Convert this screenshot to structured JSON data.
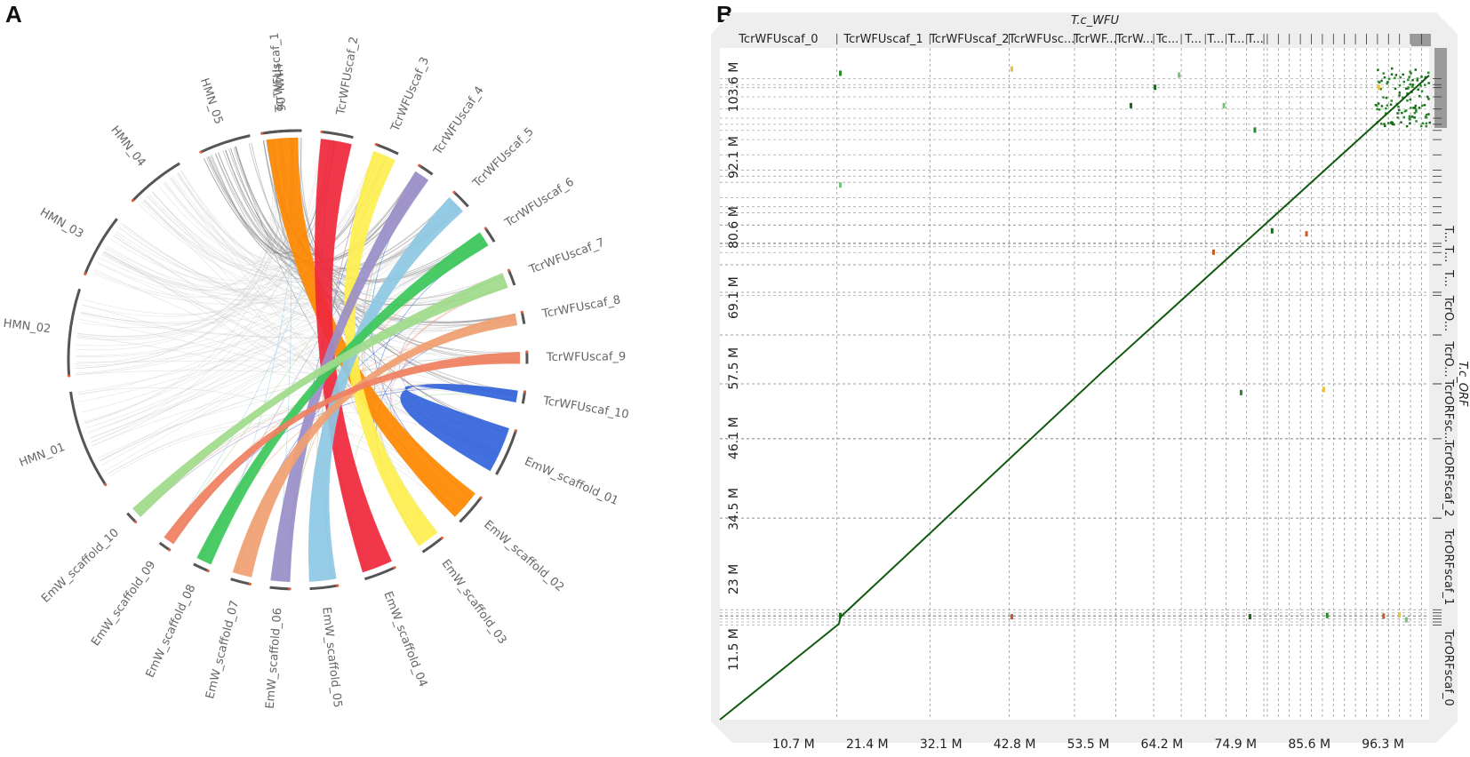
{
  "panels": {
    "a": {
      "letter": "A"
    },
    "b": {
      "letter": "B"
    }
  },
  "chart_data": [
    {
      "type": "chord",
      "panel": "A",
      "segments": [
        {
          "name": "TcrWFUscaf_1",
          "color": "#ff8800"
        },
        {
          "name": "TcrWFUscaf_2",
          "color": "#f0283c"
        },
        {
          "name": "TcrWFUscaf_3",
          "color": "#fff050"
        },
        {
          "name": "TcrWFUscaf_4",
          "color": "#9b8fc8"
        },
        {
          "name": "TcrWFUscaf_5",
          "color": "#8ec8e4"
        },
        {
          "name": "TcrWFUscaf_6",
          "color": "#3cc85a"
        },
        {
          "name": "TcrWFUscaf_7",
          "color": "#ffe600"
        },
        {
          "name": "TcrWFUscaf_8",
          "color": "#f0a070"
        },
        {
          "name": "TcrWFUscaf_9",
          "color": "#a0d0e8"
        },
        {
          "name": "TcrWFUscaf_10",
          "color": "#c87840"
        },
        {
          "name": "EmW_scaffold_01",
          "color": "#6e6e6e"
        },
        {
          "name": "EmW_scaffold_02",
          "color": "#6e6e6e"
        },
        {
          "name": "EmW_scaffold_03",
          "color": "#6e6e6e"
        },
        {
          "name": "EmW_scaffold_04",
          "color": "#6e6e6e"
        },
        {
          "name": "EmW_scaffold_05",
          "color": "#6e6e6e"
        },
        {
          "name": "EmW_scaffold_06",
          "color": "#6e6e6e"
        },
        {
          "name": "EmW_scaffold_07",
          "color": "#6e6e6e"
        },
        {
          "name": "EmW_scaffold_08",
          "color": "#6e6e6e"
        },
        {
          "name": "EmW_scaffold_09",
          "color": "#6e6e6e"
        },
        {
          "name": "EmW_scaffold_10",
          "color": "#6e6e6e"
        },
        {
          "name": "HMN_01",
          "color": "#6e6e6e"
        },
        {
          "name": "HMN_02",
          "color": "#6e6e6e"
        },
        {
          "name": "HMN_03",
          "color": "#6e6e6e"
        },
        {
          "name": "HMN_04",
          "color": "#6e6e6e"
        },
        {
          "name": "HMN_05",
          "color": "#6e6e6e"
        },
        {
          "name": "HMN_06",
          "color": "#6e6e6e"
        }
      ],
      "links": [
        {
          "from": "TcrWFUscaf_1",
          "to": "EmW_scaffold_02",
          "color": "#ff8800"
        },
        {
          "from": "TcrWFUscaf_2",
          "to": "EmW_scaffold_04",
          "color": "#f0283c"
        },
        {
          "from": "TcrWFUscaf_3",
          "to": "EmW_scaffold_03",
          "color": "#fff050"
        },
        {
          "from": "TcrWFUscaf_4",
          "to": "EmW_scaffold_06",
          "color": "#9b8fc8"
        },
        {
          "from": "TcrWFUscaf_5",
          "to": "EmW_scaffold_05",
          "color": "#8ec8e4"
        },
        {
          "from": "TcrWFUscaf_6",
          "to": "EmW_scaffold_08",
          "color": "#3cc85a"
        },
        {
          "from": "TcrWFUscaf_7",
          "to": "EmW_scaffold_10",
          "color": "#a0dc8c"
        },
        {
          "from": "TcrWFUscaf_8",
          "to": "EmW_scaffold_07",
          "color": "#f0a070"
        },
        {
          "from": "TcrWFUscaf_9",
          "to": "EmW_scaffold_09",
          "color": "#f08060"
        },
        {
          "from": "TcrWFUscaf_10",
          "to": "EmW_scaffold_01",
          "color": "#3264dc"
        }
      ]
    },
    {
      "type": "scatter",
      "panel": "B",
      "title": "T.c_WFU",
      "xlabel": "T.c_WFU",
      "ylabel": "T.c_ORF",
      "xlim": [
        0,
        103
      ],
      "ylim": [
        0,
        110
      ],
      "x_ticks": [
        "10.7 M",
        "21.4 M",
        "32.1 M",
        "42.8 M",
        "53.5 M",
        "64.2 M",
        "74.9 M",
        "85.6 M",
        "96.3 M"
      ],
      "x_tick_values": [
        10.7,
        21.4,
        32.1,
        42.8,
        53.5,
        64.2,
        74.9,
        85.6,
        96.3
      ],
      "y_ticks": [
        "11.5 M",
        "23 M",
        "34.5 M",
        "46.1 M",
        "57.5 M",
        "69.1 M",
        "80.6 M",
        "92.1 M",
        "103.6 M"
      ],
      "y_tick_values": [
        11.5,
        23,
        34.5,
        46.1,
        57.5,
        69.1,
        80.6,
        92.1,
        103.6
      ],
      "x_scaffolds": [
        {
          "label": "TcrWFUscaf_0",
          "start": 0,
          "end": 17
        },
        {
          "label": "TcrWFUscaf_1",
          "start": 17,
          "end": 30.5
        },
        {
          "label": "TcrWFUscaf_2",
          "start": 30.5,
          "end": 42
        },
        {
          "label": "TcrWFUsc...",
          "start": 42,
          "end": 51.5
        },
        {
          "label": "TcrWF...",
          "start": 51.5,
          "end": 57.5
        },
        {
          "label": "TcrW...",
          "start": 57.5,
          "end": 63
        },
        {
          "label": "Tc...",
          "start": 63,
          "end": 67
        },
        {
          "label": "T...",
          "start": 67,
          "end": 70.5
        },
        {
          "label": "T...",
          "start": 70.5,
          "end": 73.5
        },
        {
          "label": "T...",
          "start": 73.5,
          "end": 76.5
        },
        {
          "label": "T...",
          "start": 76.5,
          "end": 79
        }
      ],
      "y_scaffolds": [
        {
          "label": "TcrORFscaf_0",
          "start": 0,
          "end": 17
        },
        {
          "label": "TcrORFscaf_1",
          "start": 17,
          "end": 33
        },
        {
          "label": "TcrORFscaf_2",
          "start": 33,
          "end": 46
        },
        {
          "label": "TcrORFsc...",
          "start": 46,
          "end": 55
        },
        {
          "label": "TcrO...",
          "start": 55,
          "end": 63
        },
        {
          "label": "TcrO...",
          "start": 63,
          "end": 70
        },
        {
          "label": "T...",
          "start": 70,
          "end": 74.5
        },
        {
          "label": "T...",
          "start": 74.5,
          "end": 78
        },
        {
          "label": "T...",
          "start": 78,
          "end": 81
        }
      ],
      "diagonal_segments": [
        {
          "x": [
            0,
            17.3
          ],
          "y": [
            0,
            15.7
          ]
        },
        {
          "x": [
            17.3,
            17.5
          ],
          "y": [
            15.7,
            16.8
          ]
        },
        {
          "x": [
            17.5,
            55.5
          ],
          "y": [
            16.8,
            56.9
          ]
        },
        {
          "x": [
            55.5,
            103
          ],
          "y": [
            56.9,
            105.5
          ]
        }
      ]
    }
  ]
}
